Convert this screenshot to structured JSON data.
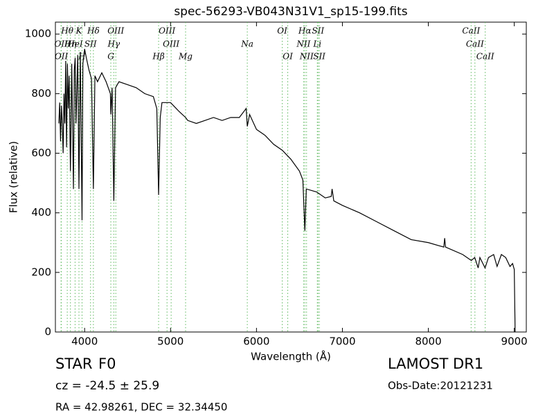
{
  "chart_data": {
    "type": "line",
    "title": "spec-56293-VB043N31V1_sp15-199.fits",
    "xlabel": "Wavelength (Å)",
    "ylabel": "Flux (relative)",
    "xlim": [
      3660,
      9140
    ],
    "ylim": [
      0,
      1040
    ],
    "xticks": [
      4000,
      5000,
      6000,
      7000,
      8000,
      9000
    ],
    "yticks": [
      0,
      200,
      400,
      600,
      800,
      1000
    ],
    "x": [
      3700,
      3710,
      3720,
      3730,
      3740,
      3750,
      3760,
      3770,
      3780,
      3790,
      3800,
      3810,
      3820,
      3835,
      3850,
      3870,
      3880,
      3890,
      3900,
      3920,
      3934,
      3950,
      3970,
      3980,
      4000,
      4020,
      4050,
      4080,
      4102,
      4120,
      4150,
      4200,
      4250,
      4300,
      4305,
      4320,
      4340,
      4360,
      4400,
      4500,
      4600,
      4700,
      4800,
      4840,
      4861,
      4880,
      4900,
      5000,
      5100,
      5175,
      5200,
      5300,
      5400,
      5500,
      5600,
      5700,
      5800,
      5880,
      5893,
      5920,
      6000,
      6100,
      6200,
      6300,
      6400,
      6500,
      6540,
      6563,
      6580,
      6700,
      6800,
      6870,
      6880,
      6900,
      7000,
      7200,
      7400,
      7600,
      7800,
      8000,
      8180,
      8190,
      8200,
      8400,
      8500,
      8540,
      8580,
      8600,
      8660,
      8700,
      8760,
      8800,
      8850,
      8900,
      8950,
      8980,
      9000,
      9010
    ],
    "series": [
      {
        "name": "flux",
        "color": "#000000",
        "values": [
          700,
          770,
          640,
          760,
          700,
          600,
          800,
          700,
          910,
          620,
          900,
          750,
          860,
          540,
          900,
          480,
          880,
          920,
          700,
          930,
          480,
          940,
          375,
          900,
          950,
          920,
          880,
          850,
          480,
          860,
          840,
          870,
          840,
          800,
          730,
          820,
          440,
          820,
          840,
          830,
          820,
          800,
          790,
          750,
          460,
          720,
          770,
          770,
          740,
          720,
          710,
          700,
          710,
          720,
          710,
          720,
          720,
          750,
          690,
          730,
          680,
          660,
          630,
          610,
          580,
          540,
          510,
          340,
          480,
          470,
          450,
          455,
          480,
          440,
          425,
          400,
          370,
          340,
          310,
          300,
          285,
          315,
          285,
          260,
          240,
          250,
          215,
          250,
          215,
          250,
          260,
          220,
          260,
          250,
          220,
          230,
          210,
          0
        ]
      }
    ],
    "line_color": "#5cb85c",
    "line_labels": [
      [
        {
          "label": "Hθ",
          "x": 3798
        },
        {
          "label": "K",
          "x": 3934
        },
        {
          "label": "Hδ",
          "x": 4102
        },
        {
          "label": "OIII",
          "x": 4363
        },
        {
          "label": "OIII",
          "x": 4959
        },
        {
          "label": "OI",
          "x": 6300
        },
        {
          "label": "Hα",
          "x": 6563
        },
        {
          "label": "SII",
          "x": 6716
        },
        {
          "label": "CaII",
          "x": 8498
        }
      ],
      [
        {
          "label": "OII",
          "x": 3726
        },
        {
          "label": "Hη",
          "x": 3835
        },
        {
          "label": "HeI",
          "x": 3889
        },
        {
          "label": "SII",
          "x": 4069
        },
        {
          "label": "Hγ",
          "x": 4340
        },
        {
          "label": "OIII",
          "x": 5007
        },
        {
          "label": "Na",
          "x": 5893
        },
        {
          "label": "NII",
          "x": 6548
        },
        {
          "label": "Li",
          "x": 6708
        },
        {
          "label": "CaII",
          "x": 8542
        }
      ],
      [
        {
          "label": "OII",
          "x": 3729
        },
        {
          "label": "H",
          "x": 3970
        },
        {
          "label": "G",
          "x": 4305
        },
        {
          "label": "Hβ",
          "x": 4861
        },
        {
          "label": "Mg",
          "x": 5175
        },
        {
          "label": "OI",
          "x": 6364
        },
        {
          "label": "NII",
          "x": 6583
        },
        {
          "label": "SII",
          "x": 6731
        },
        {
          "label": "CaII",
          "x": 8662
        }
      ]
    ],
    "class": "STAR",
    "subclass": "F0",
    "redshift": "cz = -24.5 ± 25.9",
    "coords": "RA = 42.98261, DEC = 32.34450",
    "survey": "LAMOST DR1",
    "obs_date": "Obs-Date:20121231"
  }
}
